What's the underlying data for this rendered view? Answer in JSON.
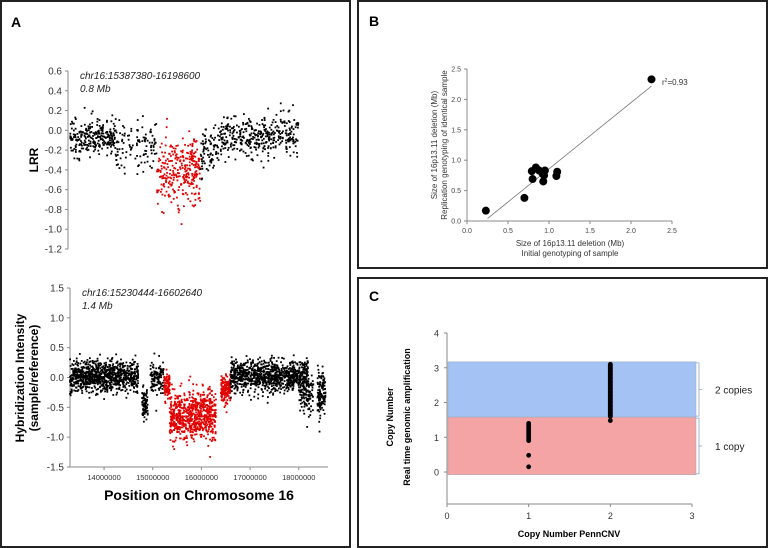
{
  "panels": {
    "a": "A",
    "b": "B",
    "c": "C"
  },
  "chart_data": [
    {
      "id": "A-top",
      "type": "scatter",
      "ylabel": "LRR",
      "annotation": [
        "chr16:15387380-16198600",
        "0.8 Mb"
      ],
      "ylim": [
        -1.2,
        0.6
      ],
      "yticks": [
        "0.6",
        "0.4",
        "0.2",
        "0.0",
        "-0.2",
        "-0.4",
        "-0.6",
        "-0.8",
        "-1.0",
        "-1.2"
      ],
      "xlim": [
        13300000,
        18600000
      ],
      "segments": [
        {
          "from": 13350000,
          "to": 14350000,
          "n": 260,
          "mean": -0.07,
          "sd": 0.09,
          "color": "#000000"
        },
        {
          "from": 14350000,
          "to": 15250000,
          "n": 110,
          "mean": -0.15,
          "sd": 0.12,
          "color": "#000000"
        },
        {
          "from": 15250000,
          "to": 16200000,
          "n": 300,
          "mean": -0.42,
          "sd": 0.17,
          "color": "#e00000"
        },
        {
          "from": 16200000,
          "to": 16600000,
          "n": 80,
          "mean": -0.2,
          "sd": 0.12,
          "color": "#000000"
        },
        {
          "from": 16600000,
          "to": 18350000,
          "n": 380,
          "mean": -0.07,
          "sd": 0.1,
          "color": "#000000"
        }
      ]
    },
    {
      "id": "A-bottom",
      "type": "scatter",
      "ylabel": "Hybridization Intensity",
      "ylabel2": "(sample/reference)",
      "xlabel": "Position on Chromosome 16",
      "annotation": [
        "chr16:15230444-16602640",
        "1.4 Mb"
      ],
      "ylim": [
        -1.5,
        1.5
      ],
      "yticks": [
        "1.5",
        "1.0",
        "0.5",
        "0.0",
        "-0.5",
        "-1.0",
        "-1.5"
      ],
      "xlim": [
        13300000,
        18600000
      ],
      "xticks": [
        {
          "v": 14000000,
          "label": "14000000"
        },
        {
          "v": 15000000,
          "label": "15000000"
        },
        {
          "v": 16000000,
          "label": "16000000"
        },
        {
          "v": 17000000,
          "label": "17000000"
        },
        {
          "v": 18000000,
          "label": "18000000"
        }
      ],
      "segments": [
        {
          "from": 13300000,
          "to": 14700000,
          "n": 900,
          "mean": 0.02,
          "sd": 0.13,
          "color": "#000000"
        },
        {
          "from": 14780000,
          "to": 14900000,
          "n": 80,
          "mean": -0.45,
          "sd": 0.12,
          "color": "#000000"
        },
        {
          "from": 14950000,
          "to": 15230000,
          "n": 120,
          "mean": 0.02,
          "sd": 0.13,
          "color": "#000000"
        },
        {
          "from": 15230000,
          "to": 15350000,
          "n": 80,
          "mean": -0.15,
          "sd": 0.12,
          "color": "#e00000"
        },
        {
          "from": 15350000,
          "to": 16300000,
          "n": 700,
          "mean": -0.65,
          "sd": 0.2,
          "color": "#e00000"
        },
        {
          "from": 16400000,
          "to": 16600000,
          "n": 150,
          "mean": -0.2,
          "sd": 0.13,
          "color": "#e00000"
        },
        {
          "from": 16600000,
          "to": 18200000,
          "n": 950,
          "mean": 0.02,
          "sd": 0.13,
          "color": "#000000"
        },
        {
          "from": 18000000,
          "to": 18300000,
          "n": 100,
          "mean": -0.3,
          "sd": 0.15,
          "color": "#000000"
        },
        {
          "from": 18380000,
          "to": 18550000,
          "n": 140,
          "mean": -0.3,
          "sd": 0.2,
          "color": "#000000"
        }
      ]
    },
    {
      "id": "B",
      "type": "scatter",
      "xlabel": "Size of 16p13.11 deletion  (Mb)",
      "xlabel2": "Initial genotyping of sample",
      "ylabel": "Size of 16p13.11 deletion  (Mb)",
      "ylabel2": "Replication genotyping of identical sample",
      "xlim": [
        0,
        2.5
      ],
      "ylim": [
        0,
        2.5
      ],
      "ticks": [
        "0.0",
        "0.5",
        "1.0",
        "1.5",
        "2.0",
        "2.5"
      ],
      "points": [
        [
          0.23,
          0.17
        ],
        [
          0.7,
          0.38
        ],
        [
          0.8,
          0.69
        ],
        [
          0.79,
          0.82
        ],
        [
          0.84,
          0.88
        ],
        [
          0.88,
          0.83
        ],
        [
          0.92,
          0.78
        ],
        [
          0.93,
          0.65
        ],
        [
          0.95,
          0.83
        ],
        [
          0.94,
          0.75
        ],
        [
          1.09,
          0.74
        ],
        [
          1.1,
          0.81
        ],
        [
          2.25,
          2.33
        ]
      ],
      "fit": [
        [
          0.25,
          0.04
        ],
        [
          2.25,
          2.22
        ]
      ],
      "r2_label": "r",
      "r2_sup": "2",
      "r2_value": "=0.93"
    },
    {
      "id": "C",
      "type": "scatter",
      "xlabel": "Copy Number  PennCNV",
      "ylabel": "Copy Number",
      "ylabel2": "Real time genomic amplification",
      "xlim": [
        0,
        3
      ],
      "ylim": [
        -0.9,
        4
      ],
      "xticks": [
        "0",
        "1",
        "2",
        "3"
      ],
      "yticks": [
        "0",
        "1",
        "2",
        "3",
        "4"
      ],
      "bands": [
        {
          "label": "2 copies",
          "from": 1.58,
          "to": 3.17,
          "color": "#a4c2f4"
        },
        {
          "label": "1 copy",
          "from": -0.08,
          "to": 1.58,
          "color": "#f4a4a4"
        }
      ],
      "points": [
        [
          1,
          0.15
        ],
        [
          1,
          0.48
        ],
        [
          1,
          0.9
        ],
        [
          1,
          0.95
        ],
        [
          1,
          1.0
        ],
        [
          1,
          1.05
        ],
        [
          1,
          1.1
        ],
        [
          1,
          1.15
        ],
        [
          1,
          1.2
        ],
        [
          1,
          1.25
        ],
        [
          1,
          1.3
        ],
        [
          1,
          1.35
        ],
        [
          1,
          1.4
        ],
        [
          2,
          1.48
        ],
        [
          2,
          1.6
        ],
        [
          2,
          1.7
        ],
        [
          2,
          1.8
        ],
        [
          2,
          1.9
        ],
        [
          2,
          2.0
        ],
        [
          2,
          2.1
        ],
        [
          2,
          2.2
        ],
        [
          2,
          2.3
        ],
        [
          2,
          2.4
        ],
        [
          2,
          2.5
        ],
        [
          2,
          2.6
        ],
        [
          2,
          2.7
        ],
        [
          2,
          2.8
        ],
        [
          2,
          2.9
        ],
        [
          2,
          3.0
        ],
        [
          2,
          3.1
        ]
      ]
    }
  ]
}
